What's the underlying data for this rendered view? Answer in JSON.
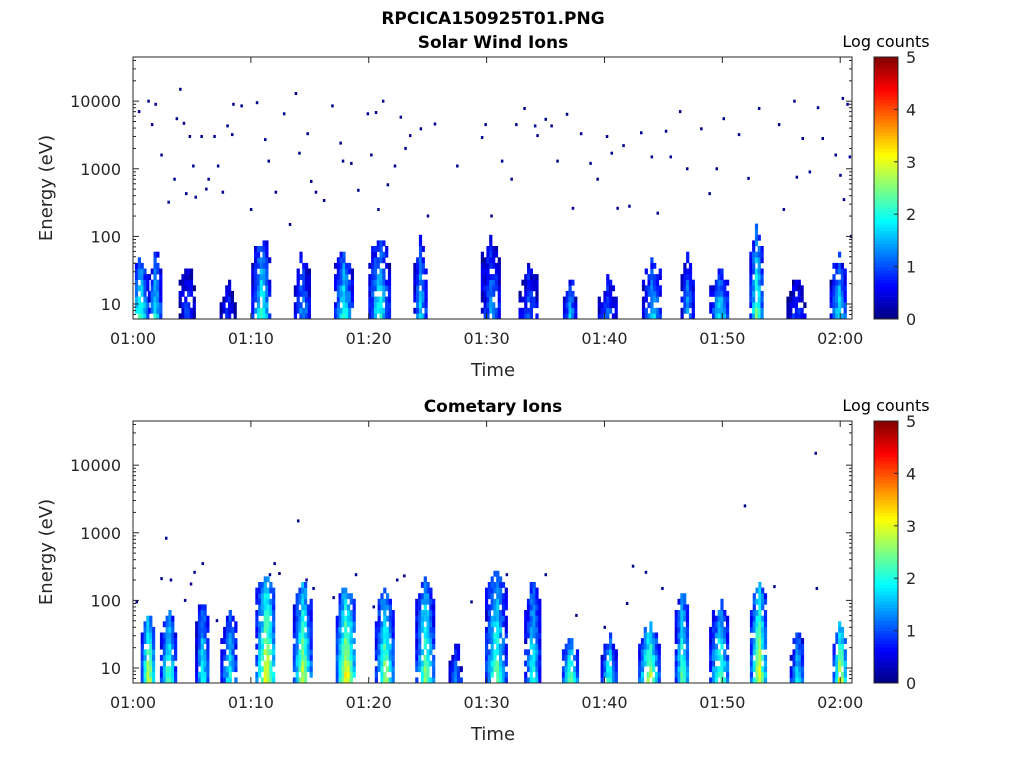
{
  "figure_title": "RPCICA150925T01.PNG",
  "chart_data": [
    {
      "type": "heatmap",
      "title": "Solar Wind Ions",
      "xlabel": "Time",
      "ylabel": "Energy (eV)",
      "x_ticks": [
        "01:00",
        "01:10",
        "01:20",
        "01:30",
        "01:40",
        "01:50",
        "02:00"
      ],
      "x_range_minutes": [
        0,
        61
      ],
      "y_ticks": [
        10,
        100,
        1000,
        10000
      ],
      "y_scale": "log",
      "y_range": [
        6,
        45000
      ],
      "colorbar": {
        "label": "Log counts",
        "ticks": [
          0,
          1,
          2,
          3,
          4,
          5
        ],
        "range": [
          0,
          5
        ],
        "colormap": "jet"
      },
      "bursts": [
        {
          "t": 0.5,
          "emax": 30,
          "peak": 2.3
        },
        {
          "t": 1.8,
          "emax": 40,
          "peak": 2.0
        },
        {
          "t": 4.5,
          "emax": 25,
          "peak": 1.0
        },
        {
          "t": 8.0,
          "emax": 15,
          "peak": 0.9
        },
        {
          "t": 10.8,
          "emax": 60,
          "peak": 2.2
        },
        {
          "t": 14.3,
          "emax": 35,
          "peak": 1.5
        },
        {
          "t": 17.8,
          "emax": 40,
          "peak": 2.2
        },
        {
          "t": 20.8,
          "emax": 60,
          "peak": 2.1
        },
        {
          "t": 24.3,
          "emax": 60,
          "peak": 1.8
        },
        {
          "t": 30.3,
          "emax": 60,
          "peak": 1.4
        },
        {
          "t": 33.5,
          "emax": 25,
          "peak": 1.2
        },
        {
          "t": 37.0,
          "emax": 15,
          "peak": 1.6
        },
        {
          "t": 40.2,
          "emax": 15,
          "peak": 1.2
        },
        {
          "t": 44.0,
          "emax": 30,
          "peak": 1.7
        },
        {
          "t": 47.0,
          "emax": 35,
          "peak": 1.6
        },
        {
          "t": 49.7,
          "emax": 20,
          "peak": 1.9
        },
        {
          "t": 52.8,
          "emax": 80,
          "peak": 2.5
        },
        {
          "t": 56.2,
          "emax": 15,
          "peak": 0.9
        },
        {
          "t": 59.8,
          "emax": 35,
          "peak": 1.9
        }
      ],
      "scatter_points": [
        [
          0.5,
          7000
        ],
        [
          1.3,
          10000
        ],
        [
          1.6,
          4500
        ],
        [
          1.9,
          9000
        ],
        [
          2.4,
          1600
        ],
        [
          3.0,
          320
        ],
        [
          3.5,
          700
        ],
        [
          3.7,
          5500
        ],
        [
          4.0,
          15000
        ],
        [
          4.3,
          4700
        ],
        [
          4.5,
          430
        ],
        [
          4.8,
          3000
        ],
        [
          5.1,
          1100
        ],
        [
          5.3,
          380
        ],
        [
          5.8,
          3000
        ],
        [
          6.2,
          500
        ],
        [
          6.4,
          700
        ],
        [
          6.9,
          3000
        ],
        [
          7.2,
          1100
        ],
        [
          7.6,
          450
        ],
        [
          8.0,
          4300
        ],
        [
          8.4,
          3200
        ],
        [
          8.5,
          9000
        ],
        [
          9.2,
          8500
        ],
        [
          10.0,
          250
        ],
        [
          10.5,
          9500
        ],
        [
          11.2,
          2700
        ],
        [
          11.5,
          1300
        ],
        [
          12.1,
          450
        ],
        [
          12.8,
          6500
        ],
        [
          13.3,
          150
        ],
        [
          13.8,
          13000
        ],
        [
          14.1,
          1700
        ],
        [
          14.8,
          3300
        ],
        [
          15.1,
          650
        ],
        [
          15.5,
          450
        ],
        [
          16.2,
          340
        ],
        [
          16.9,
          8500
        ],
        [
          17.6,
          2400
        ],
        [
          17.8,
          1300
        ],
        [
          18.5,
          1200
        ],
        [
          19.1,
          480
        ],
        [
          19.9,
          6500
        ],
        [
          20.2,
          1600
        ],
        [
          20.6,
          6800
        ],
        [
          20.8,
          250
        ],
        [
          21.2,
          10000
        ],
        [
          21.6,
          580
        ],
        [
          22.2,
          1100
        ],
        [
          22.7,
          5800
        ],
        [
          23.1,
          2000
        ],
        [
          23.5,
          3100
        ],
        [
          24.4,
          3900
        ],
        [
          25.0,
          200
        ],
        [
          25.6,
          4600
        ],
        [
          27.5,
          1100
        ],
        [
          29.6,
          2900
        ],
        [
          29.9,
          4500
        ],
        [
          30.4,
          200
        ],
        [
          31.3,
          1300
        ],
        [
          32.1,
          700
        ],
        [
          32.5,
          4500
        ],
        [
          33.2,
          7800
        ],
        [
          34.1,
          4300
        ],
        [
          34.3,
          3100
        ],
        [
          35.0,
          5400
        ],
        [
          35.5,
          4300
        ],
        [
          36.0,
          1300
        ],
        [
          36.8,
          6400
        ],
        [
          37.3,
          260
        ],
        [
          38.0,
          3300
        ],
        [
          38.8,
          1200
        ],
        [
          39.4,
          700
        ],
        [
          40.2,
          3000
        ],
        [
          40.6,
          1700
        ],
        [
          41.1,
          260
        ],
        [
          41.6,
          2200
        ],
        [
          42.1,
          280
        ],
        [
          43.1,
          3400
        ],
        [
          44.0,
          1500
        ],
        [
          44.5,
          220
        ],
        [
          45.2,
          3600
        ],
        [
          45.6,
          1500
        ],
        [
          46.4,
          7000
        ],
        [
          47.0,
          1000
        ],
        [
          48.2,
          3900
        ],
        [
          48.9,
          430
        ],
        [
          49.5,
          1000
        ],
        [
          50.1,
          5500
        ],
        [
          51.4,
          3200
        ],
        [
          52.2,
          720
        ],
        [
          53.1,
          7800
        ],
        [
          54.8,
          4500
        ],
        [
          55.2,
          250
        ],
        [
          56.1,
          10000
        ],
        [
          56.3,
          750
        ],
        [
          56.8,
          2800
        ],
        [
          57.4,
          900
        ],
        [
          58.1,
          8000
        ],
        [
          58.5,
          2800
        ],
        [
          59.6,
          1600
        ],
        [
          60.0,
          800
        ],
        [
          60.2,
          11000
        ],
        [
          60.3,
          350
        ],
        [
          60.6,
          9000
        ],
        [
          60.8,
          1500
        ],
        [
          60.9,
          100
        ]
      ]
    },
    {
      "type": "heatmap",
      "title": "Cometary Ions",
      "xlabel": "Time",
      "ylabel": "Energy (eV)",
      "x_ticks": [
        "01:00",
        "01:10",
        "01:20",
        "01:30",
        "01:40",
        "01:50",
        "02:00"
      ],
      "x_range_minutes": [
        0,
        61
      ],
      "y_ticks": [
        10,
        100,
        1000,
        10000
      ],
      "y_scale": "log",
      "y_range": [
        6,
        45000
      ],
      "colorbar": {
        "label": "Log counts",
        "ticks": [
          0,
          1,
          2,
          3,
          4,
          5
        ],
        "range": [
          0,
          5
        ],
        "colormap": "jet"
      },
      "bursts": [
        {
          "t": 1.2,
          "emax": 45,
          "peak": 3.2
        },
        {
          "t": 2.9,
          "emax": 50,
          "peak": 2.6
        },
        {
          "t": 5.8,
          "emax": 60,
          "peak": 2.2
        },
        {
          "t": 8.1,
          "emax": 40,
          "peak": 2.0
        },
        {
          "t": 11.2,
          "emax": 150,
          "peak": 3.3
        },
        {
          "t": 14.3,
          "emax": 120,
          "peak": 3.0
        },
        {
          "t": 18.0,
          "emax": 100,
          "peak": 3.4
        },
        {
          "t": 21.3,
          "emax": 90,
          "peak": 2.8
        },
        {
          "t": 24.7,
          "emax": 150,
          "peak": 2.7
        },
        {
          "t": 27.3,
          "emax": 15,
          "peak": 1.4
        },
        {
          "t": 30.7,
          "emax": 200,
          "peak": 2.6
        },
        {
          "t": 33.8,
          "emax": 120,
          "peak": 2.2
        },
        {
          "t": 37.0,
          "emax": 20,
          "peak": 2.8
        },
        {
          "t": 40.3,
          "emax": 20,
          "peak": 2.3
        },
        {
          "t": 43.7,
          "emax": 30,
          "peak": 3.0
        },
        {
          "t": 46.5,
          "emax": 100,
          "peak": 2.6
        },
        {
          "t": 49.7,
          "emax": 60,
          "peak": 2.5
        },
        {
          "t": 53.0,
          "emax": 120,
          "peak": 3.2
        },
        {
          "t": 56.3,
          "emax": 25,
          "peak": 2.1
        },
        {
          "t": 59.9,
          "emax": 35,
          "peak": 3.3
        }
      ],
      "scatter_points": [
        [
          0.3,
          95
        ],
        [
          2.8,
          830
        ],
        [
          2.4,
          210
        ],
        [
          3.2,
          200
        ],
        [
          4.4,
          100
        ],
        [
          5.2,
          260
        ],
        [
          5.9,
          350
        ],
        [
          4.9,
          175
        ],
        [
          7.1,
          50
        ],
        [
          11.6,
          240
        ],
        [
          12.0,
          350
        ],
        [
          12.4,
          250
        ],
        [
          14.0,
          1500
        ],
        [
          14.7,
          200
        ],
        [
          15.3,
          150
        ],
        [
          17.0,
          110
        ],
        [
          18.9,
          240
        ],
        [
          20.4,
          80
        ],
        [
          22.4,
          200
        ],
        [
          23.0,
          230
        ],
        [
          28.7,
          95
        ],
        [
          31.7,
          240
        ],
        [
          35.0,
          240
        ],
        [
          37.6,
          60
        ],
        [
          40.0,
          40
        ],
        [
          41.9,
          90
        ],
        [
          42.4,
          320
        ],
        [
          43.5,
          260
        ],
        [
          44.9,
          150
        ],
        [
          51.9,
          2500
        ],
        [
          54.4,
          160
        ],
        [
          57.9,
          15000
        ],
        [
          58.0,
          150
        ]
      ]
    }
  ]
}
